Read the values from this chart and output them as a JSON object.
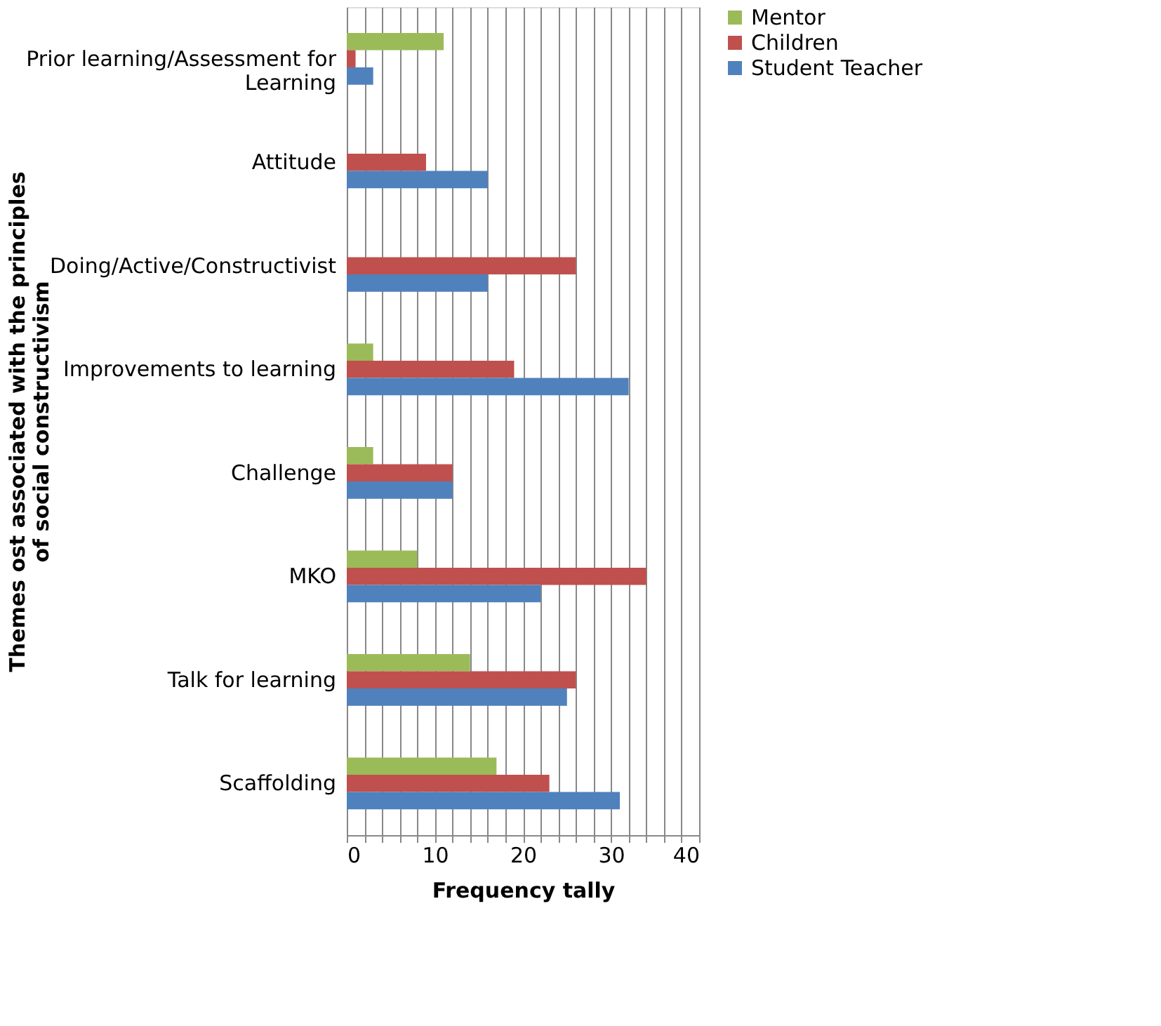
{
  "chart_data": {
    "type": "bar",
    "orientation": "horizontal",
    "xlabel": "Frequency tally",
    "ylabel": "Themes ost associated with the principles of social constructivism",
    "categories": [
      "Prior learning/Assessment for Learning",
      "Attitude",
      "Doing/Active/Constructivist",
      "Improvements to learning",
      "Challenge",
      "MKO",
      "Talk for learning",
      "Scaffolding"
    ],
    "series": [
      {
        "name": "Mentor",
        "color": "#9bbb59",
        "values": [
          11,
          null,
          null,
          3,
          3,
          8,
          14,
          17
        ]
      },
      {
        "name": "Children",
        "color": "#c0504d",
        "values": [
          1,
          9,
          26,
          19,
          12,
          34,
          26,
          23
        ]
      },
      {
        "name": "Student Teacher",
        "color": "#4f81bd",
        "values": [
          3,
          16,
          16,
          32,
          12,
          22,
          25,
          31
        ]
      }
    ],
    "xlim": [
      0,
      40
    ],
    "xticks": [
      0,
      {
        "value": 2,
        "label": null
      },
      {
        "value": 4,
        "label": null
      },
      {
        "value": 6,
        "label": null
      },
      {
        "value": 8,
        "label": null
      },
      10,
      {
        "value": 12,
        "label": null
      },
      {
        "value": 14,
        "label": null
      },
      {
        "value": 16,
        "label": null
      },
      {
        "value": 18,
        "label": null
      },
      20,
      {
        "value": 22,
        "label": null
      },
      {
        "value": 24,
        "label": null
      },
      {
        "value": 26,
        "label": null
      },
      {
        "value": 28,
        "label": null
      },
      30,
      {
        "value": 32,
        "label": null
      },
      {
        "value": 34,
        "label": null
      },
      {
        "value": 36,
        "label": null
      },
      {
        "value": 38,
        "label": null
      },
      40
    ],
    "grid": "x",
    "legend": "right"
  }
}
